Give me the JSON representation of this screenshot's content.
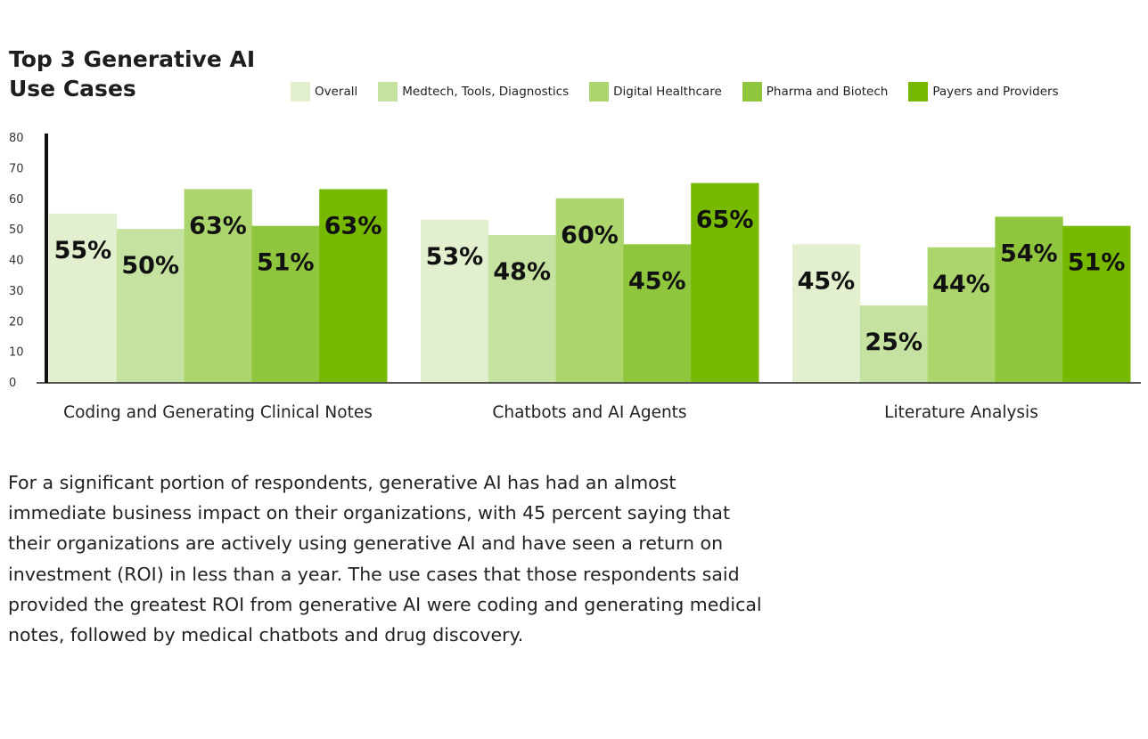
{
  "header": {
    "title_line1": "Top 3 Generative AI",
    "title_line2": "Use Cases"
  },
  "colors": {
    "series": [
      "#e3f0cf",
      "#c5e2a0",
      "#acd66d",
      "#8fc63e",
      "#77b900"
    ],
    "axis": "#111111",
    "baseline": "#555555"
  },
  "chart_data": {
    "type": "bar",
    "title": "Top 3 Generative AI Use Cases",
    "xlabel": "",
    "ylabel": "",
    "ylim": [
      0,
      80
    ],
    "yticks": [
      0,
      10,
      20,
      30,
      40,
      50,
      60,
      70,
      80
    ],
    "legend": "top",
    "categories": [
      "Coding and Generating Clinical Notes",
      "Chatbots and AI Agents",
      "Literature Analysis"
    ],
    "series": [
      {
        "name": "Overall",
        "values": [
          55,
          53,
          45
        ]
      },
      {
        "name": "Medtech, Tools, Diagnostics",
        "values": [
          50,
          48,
          25
        ]
      },
      {
        "name": "Digital Healthcare",
        "values": [
          63,
          60,
          44
        ]
      },
      {
        "name": "Pharma and Biotech",
        "values": [
          51,
          45,
          54
        ]
      },
      {
        "name": "Payers and Providers",
        "values": [
          63,
          65,
          51
        ]
      }
    ],
    "value_suffix": "%"
  },
  "body_text": "For a significant portion of respondents, generative AI has had an almost immediate business impact on their organizations, with 45 percent saying that their organizations are actively using generative AI and have seen a return on investment (ROI) in less than a year. The use cases that those respondents said provided the greatest ROI from generative AI were coding and generating medical notes, followed by medical chatbots and drug discovery."
}
